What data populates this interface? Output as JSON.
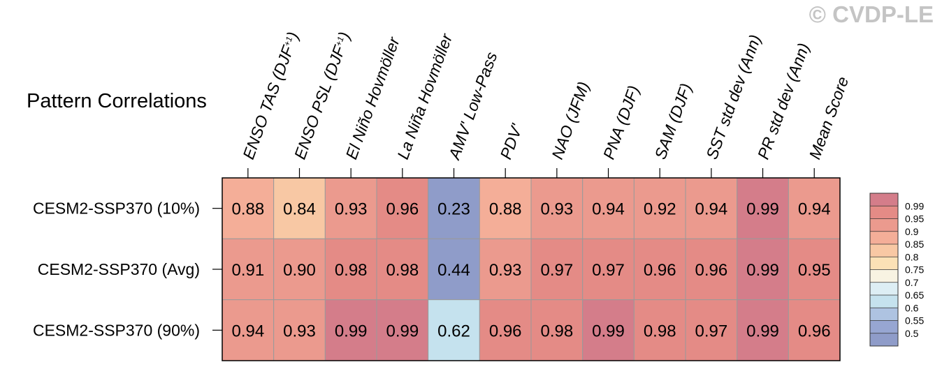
{
  "watermark": "© CVDP-LE",
  "chart_data": {
    "type": "heatmap",
    "title": "Pattern Correlations",
    "columns": [
      {
        "label": "ENSO TAS (DJF",
        "sup": "+1",
        "suffix": ")"
      },
      {
        "label": "ENSO PSL (DJF",
        "sup": "+1",
        "suffix": ")"
      },
      {
        "label": "El Niño Hovmöller"
      },
      {
        "label": "La Niña Hovmöller"
      },
      {
        "label": "AMV' Low-Pass"
      },
      {
        "label": "PDV'"
      },
      {
        "label": "NAO (JFM)"
      },
      {
        "label": "PNA (DJF)"
      },
      {
        "label": "SAM (DJF)"
      },
      {
        "label": "SST std dev (Ann)"
      },
      {
        "label": "PR std dev (Ann)"
      },
      {
        "label": "Mean Score"
      }
    ],
    "rows": [
      "CESM2-SSP370 (10%)",
      "CESM2-SSP370 (Avg)",
      "CESM2-SSP370 (90%)"
    ],
    "values": [
      [
        "0.88",
        "0.84",
        "0.93",
        "0.96",
        "0.23",
        "0.88",
        "0.93",
        "0.94",
        "0.92",
        "0.94",
        "0.99",
        "0.94"
      ],
      [
        "0.91",
        "0.90",
        "0.98",
        "0.98",
        "0.44",
        "0.93",
        "0.97",
        "0.97",
        "0.96",
        "0.96",
        "0.99",
        "0.95"
      ],
      [
        "0.94",
        "0.93",
        "0.99",
        "0.99",
        "0.62",
        "0.96",
        "0.98",
        "0.99",
        "0.98",
        "0.97",
        "0.99",
        "0.96"
      ]
    ],
    "colorbar": {
      "levels": [
        "0.99",
        "0.95",
        "0.9",
        "0.85",
        "0.8",
        "0.75",
        "0.7",
        "0.65",
        "0.6",
        "0.55",
        "0.5"
      ],
      "colors": [
        "#d47d8a",
        "#e48b86",
        "#eb9a8e",
        "#f4ae98",
        "#f8c8a4",
        "#fbe1b6",
        "#f8f3e2",
        "#ddeef4",
        "#c5e2ee",
        "#aec3e1",
        "#97a6d2",
        "#8f9cc9"
      ]
    }
  }
}
